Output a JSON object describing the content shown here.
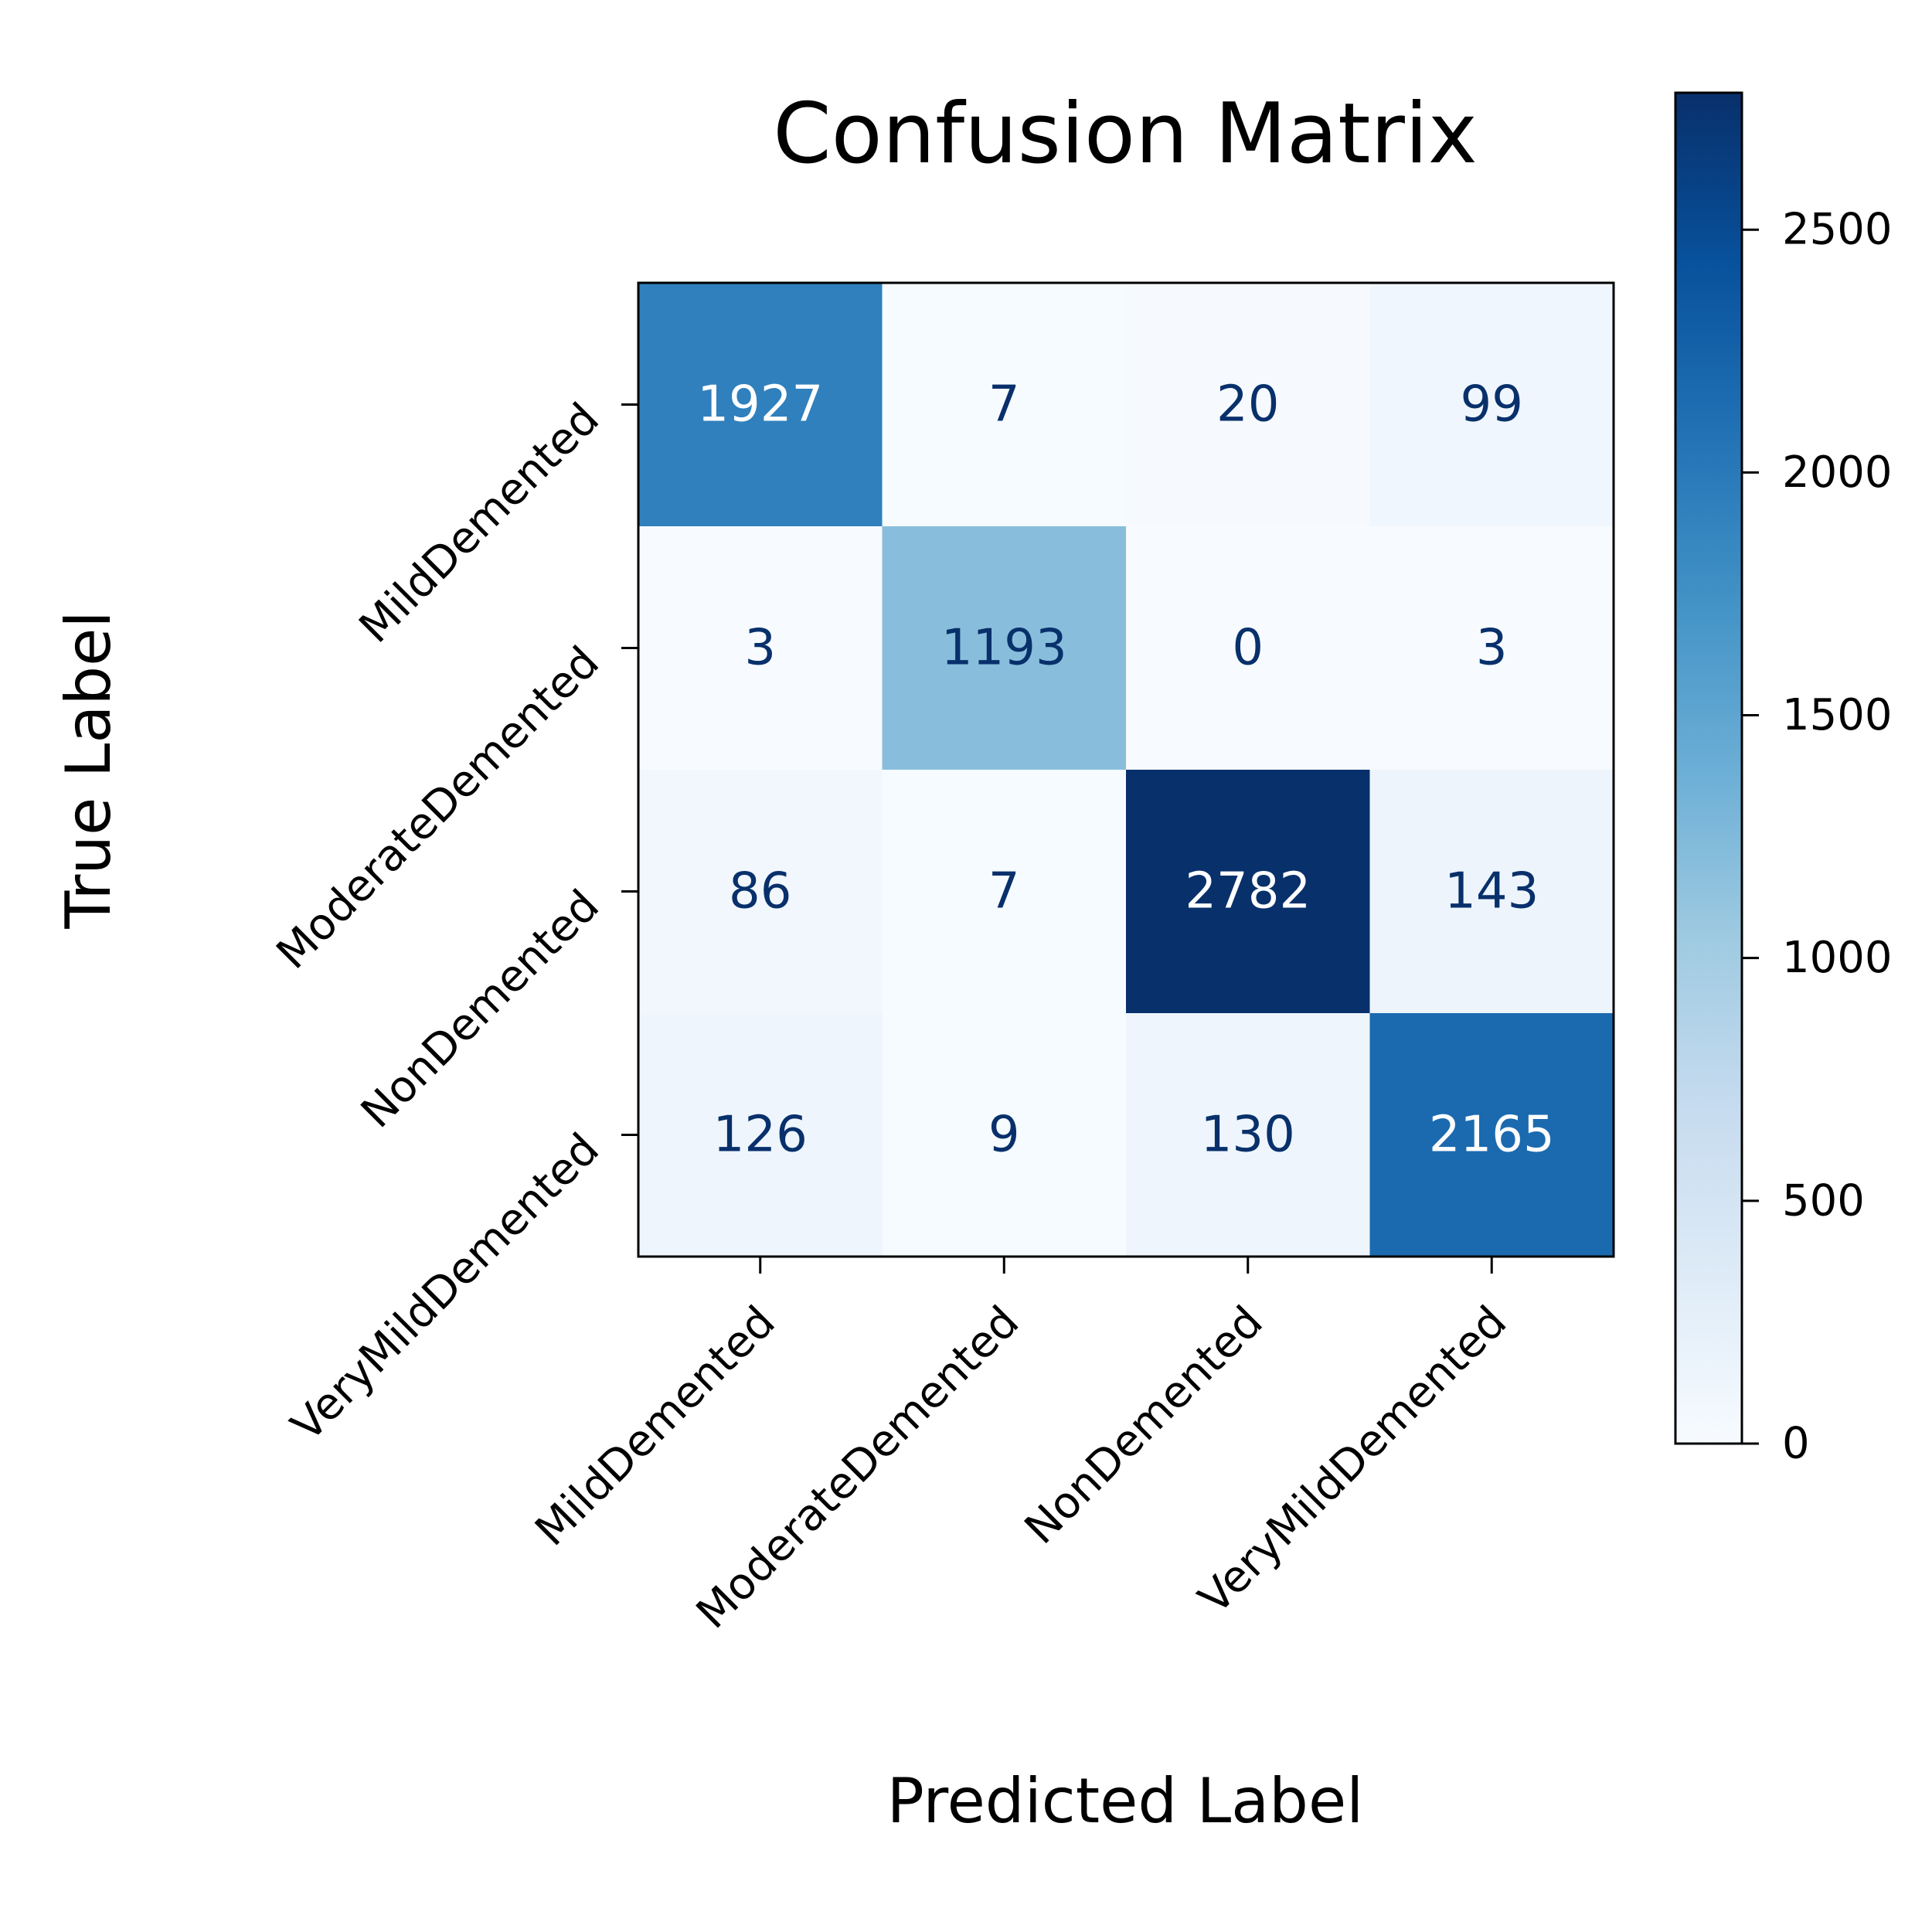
{
  "chart_data": {
    "type": "heatmap",
    "title": "Confusion Matrix",
    "xlabel": "Predicted Label",
    "ylabel": "True Label",
    "x_categories": [
      "MildDemented",
      "ModerateDemented",
      "NonDemented",
      "VeryMildDemented"
    ],
    "y_categories": [
      "MildDemented",
      "ModerateDemented",
      "NonDemented",
      "VeryMildDemented"
    ],
    "matrix": [
      [
        1927,
        7,
        20,
        99
      ],
      [
        3,
        1193,
        0,
        3
      ],
      [
        86,
        7,
        2782,
        143
      ],
      [
        126,
        9,
        130,
        2165
      ]
    ],
    "colormap": "Blues",
    "colorbar": {
      "min": 0,
      "max": 2782,
      "ticks": [
        0,
        500,
        1000,
        1500,
        2000,
        2500
      ]
    },
    "grid": false
  }
}
